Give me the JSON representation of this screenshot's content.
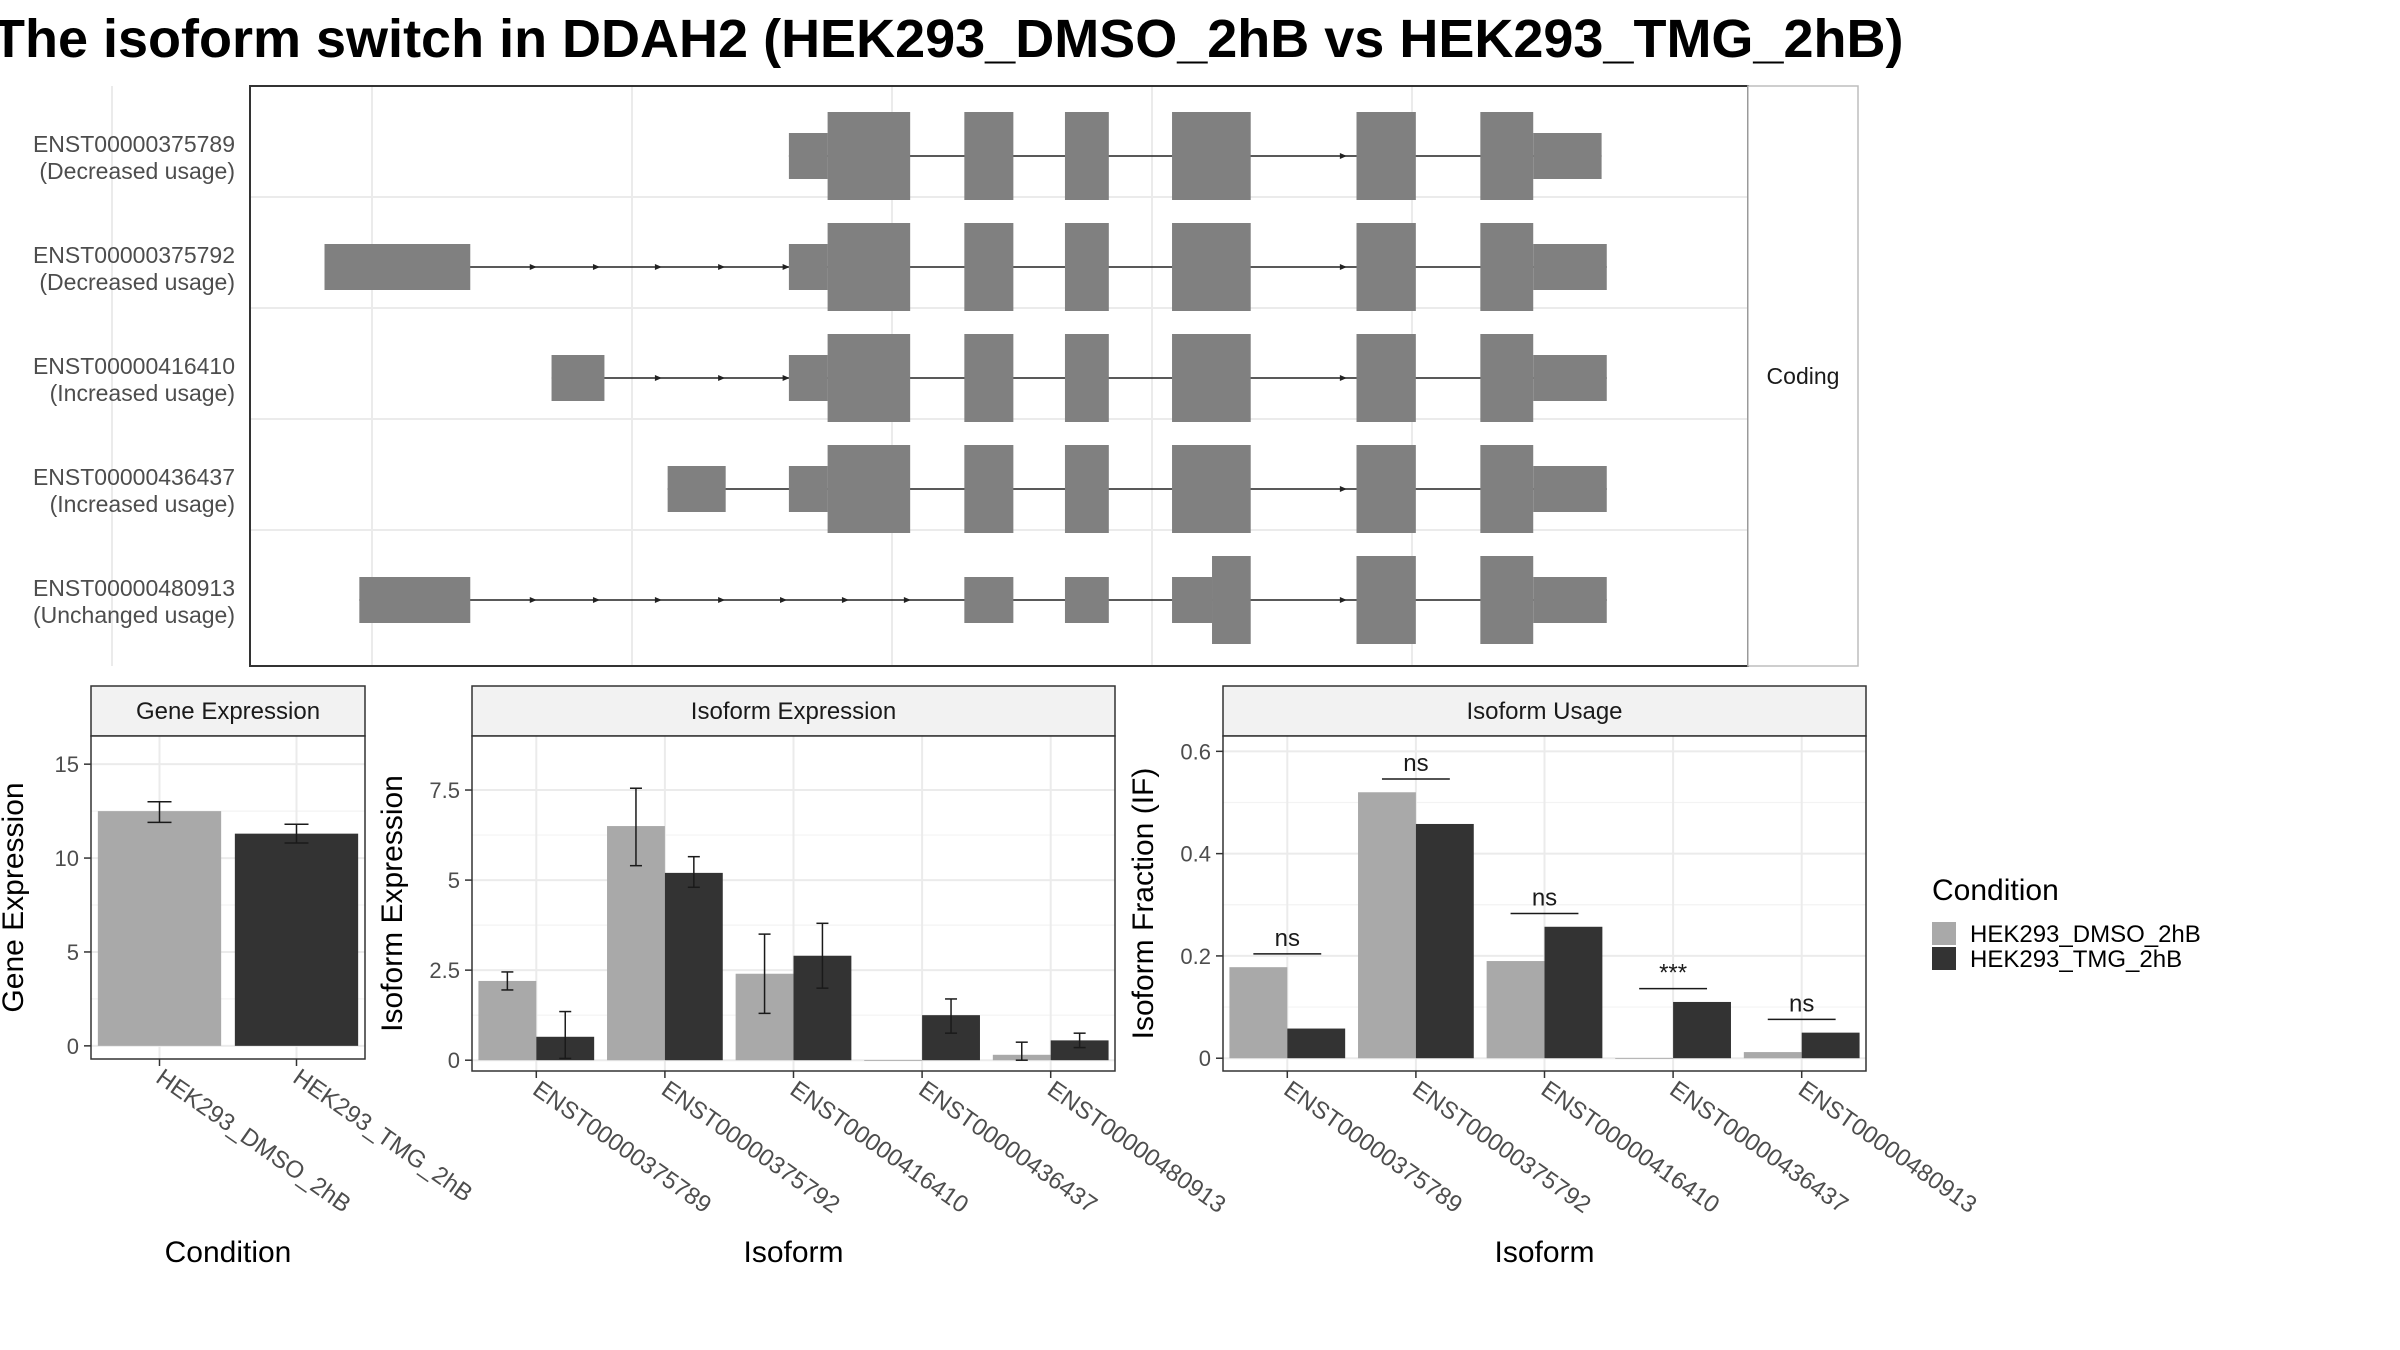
{
  "title": "The isoform switch in DDAH2 (HEK293_DMSO_2hB vs HEK293_TMG_2hB)",
  "colors": {
    "dmso": "#a9a9a9",
    "tmg": "#333333",
    "exon": "#808080",
    "grid": "#ebebeb",
    "strip": "#f2f2f2"
  },
  "chart_data": [
    {
      "type": "diagram",
      "panel": "transcript-structure",
      "strip_label": "Coding",
      "x_domain": [
        0,
        1000
      ],
      "transcripts": [
        {
          "id": "ENST00000375789",
          "usage": "(Decreased usage)",
          "exons": [
            [
              410,
              440,
              "utr"
            ],
            [
              440,
              504,
              "cds"
            ],
            [
              546,
              584,
              "cds"
            ],
            [
              624,
              658,
              "cds"
            ],
            [
              707,
              768,
              "cds"
            ],
            [
              850,
              896,
              "cds"
            ],
            [
              946,
              987,
              "cds"
            ],
            [
              987,
              1040,
              "utr"
            ]
          ],
          "arrows": [
            841,
            883
          ]
        },
        {
          "id": "ENST00000375792",
          "usage": "(Decreased usage)",
          "exons": [
            [
              50,
              163,
              "utr"
            ],
            [
              410,
              440,
              "utr"
            ],
            [
              440,
              504,
              "cds"
            ],
            [
              546,
              584,
              "cds"
            ],
            [
              624,
              658,
              "cds"
            ],
            [
              707,
              768,
              "cds"
            ],
            [
              850,
              896,
              "cds"
            ],
            [
              946,
              987,
              "cds"
            ],
            [
              987,
              1044,
              "utr"
            ]
          ],
          "arrows": [
            213,
            262,
            310,
            359,
            409,
            841,
            883
          ]
        },
        {
          "id": "ENST00000416410",
          "usage": "(Increased usage)",
          "exons": [
            [
              226,
              267,
              "utr"
            ],
            [
              410,
              440,
              "utr"
            ],
            [
              440,
              504,
              "cds"
            ],
            [
              546,
              584,
              "cds"
            ],
            [
              624,
              658,
              "cds"
            ],
            [
              707,
              768,
              "cds"
            ],
            [
              850,
              896,
              "cds"
            ],
            [
              946,
              987,
              "cds"
            ],
            [
              987,
              1044,
              "utr"
            ]
          ],
          "arrows": [
            310,
            359,
            409,
            841,
            883
          ]
        },
        {
          "id": "ENST00000436437",
          "usage": "(Increased usage)",
          "exons": [
            [
              316,
              361,
              "utr"
            ],
            [
              410,
              440,
              "utr"
            ],
            [
              440,
              504,
              "cds"
            ],
            [
              546,
              584,
              "cds"
            ],
            [
              624,
              658,
              "cds"
            ],
            [
              707,
              768,
              "cds"
            ],
            [
              850,
              896,
              "cds"
            ],
            [
              946,
              987,
              "cds"
            ],
            [
              987,
              1044,
              "utr"
            ]
          ],
          "arrows": [
            841,
            883
          ]
        },
        {
          "id": "ENST00000480913",
          "usage": "(Unchanged usage)",
          "exons": [
            [
              77,
              163,
              "utr"
            ],
            [
              546,
              584,
              "utr"
            ],
            [
              624,
              658,
              "utr"
            ],
            [
              707,
              738,
              "utr"
            ],
            [
              738,
              768,
              "cds"
            ],
            [
              850,
              896,
              "cds"
            ],
            [
              946,
              987,
              "cds"
            ],
            [
              987,
              1044,
              "utr"
            ]
          ],
          "arrows": [
            213,
            262,
            310,
            359,
            407,
            455,
            503,
            841,
            883
          ]
        }
      ]
    },
    {
      "type": "bar",
      "panel": "gene-expression",
      "strip_label": "Gene Expression",
      "xlabel": "Condition",
      "ylabel": "Gene Expression",
      "ylim": [
        -0.7,
        16.5
      ],
      "yticks": [
        0,
        5,
        10,
        15
      ],
      "categories": [
        "HEK293_DMSO_2hB",
        "HEK293_TMG_2hB"
      ],
      "values": [
        12.5,
        11.3
      ],
      "error_low": [
        11.9,
        10.8
      ],
      "error_high": [
        13.0,
        11.8
      ],
      "fills": [
        "#a9a9a9",
        "#333333"
      ]
    },
    {
      "type": "bar",
      "panel": "isoform-expression",
      "strip_label": "Isoform Expression",
      "xlabel": "Isoform",
      "ylabel": "Isoform Expression",
      "ylim": [
        -0.3,
        9.0
      ],
      "yticks": [
        0.0,
        2.5,
        5.0,
        7.5
      ],
      "categories": [
        "ENST00000375789",
        "ENST00000375792",
        "ENST00000416410",
        "ENST00000436437",
        "ENST00000480913"
      ],
      "series": [
        {
          "name": "HEK293_DMSO_2hB",
          "values": [
            2.2,
            6.5,
            2.4,
            0.0,
            0.15
          ],
          "error_low": [
            1.95,
            5.4,
            1.3,
            0.0,
            0.0
          ],
          "error_high": [
            2.45,
            7.55,
            3.5,
            0.0,
            0.5
          ]
        },
        {
          "name": "HEK293_TMG_2hB",
          "values": [
            0.65,
            5.2,
            2.9,
            1.25,
            0.55
          ],
          "error_low": [
            0.05,
            4.8,
            2.0,
            0.75,
            0.35
          ],
          "error_high": [
            1.35,
            5.65,
            3.8,
            1.7,
            0.75
          ]
        }
      ]
    },
    {
      "type": "bar",
      "panel": "isoform-usage",
      "strip_label": "Isoform Usage",
      "xlabel": "Isoform",
      "ylabel": "Isoform Fraction (IF)",
      "ylim": [
        -0.025,
        0.63
      ],
      "yticks": [
        0.0,
        0.2,
        0.4,
        0.6
      ],
      "categories": [
        "ENST00000375789",
        "ENST00000375792",
        "ENST00000416410",
        "ENST00000436437",
        "ENST00000480913"
      ],
      "series": [
        {
          "name": "HEK293_DMSO_2hB",
          "values": [
            0.178,
            0.52,
            0.19,
            0.0,
            0.012
          ]
        },
        {
          "name": "HEK293_TMG_2hB",
          "values": [
            0.058,
            0.458,
            0.257,
            0.11,
            0.05
          ]
        }
      ],
      "significance": [
        {
          "label": "ns",
          "y": 0.204
        },
        {
          "label": "ns",
          "y": 0.546
        },
        {
          "label": "ns",
          "y": 0.283
        },
        {
          "label": "***",
          "y": 0.136
        },
        {
          "label": "ns",
          "y": 0.076
        }
      ]
    }
  ],
  "legend": {
    "title": "Condition",
    "items": [
      {
        "label": "HEK293_DMSO_2hB",
        "color": "#a9a9a9"
      },
      {
        "label": "HEK293_TMG_2hB",
        "color": "#333333"
      }
    ]
  }
}
